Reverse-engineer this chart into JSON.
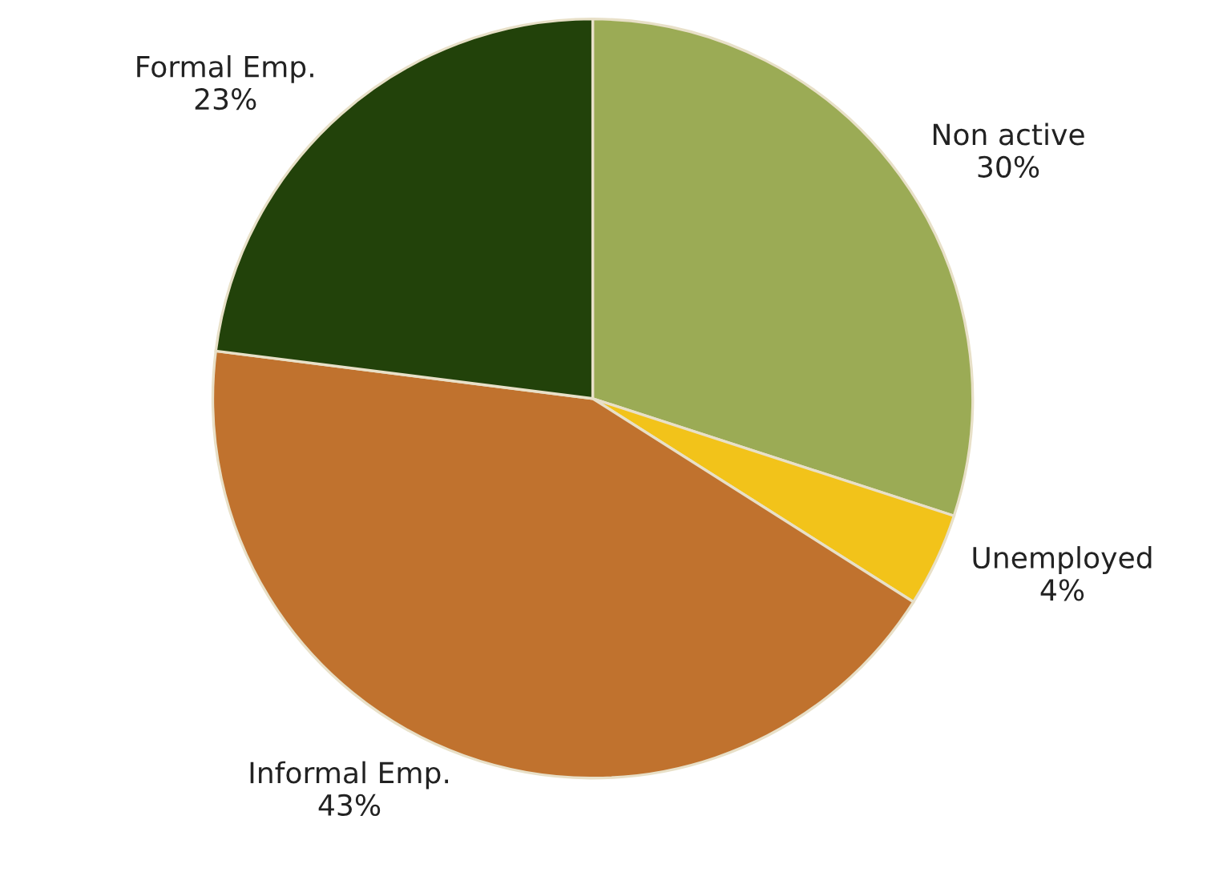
{
  "chart_data": {
    "type": "pie",
    "categories": [
      "Non active",
      "Unemployed",
      "Informal Emp.",
      "Formal Emp."
    ],
    "values": [
      30,
      4,
      43,
      23
    ],
    "value_labels": [
      "30%",
      "4%",
      "43%",
      "23%"
    ],
    "colors": [
      "#9bab55",
      "#f2c31a",
      "#c0722e",
      "#22420a"
    ]
  }
}
